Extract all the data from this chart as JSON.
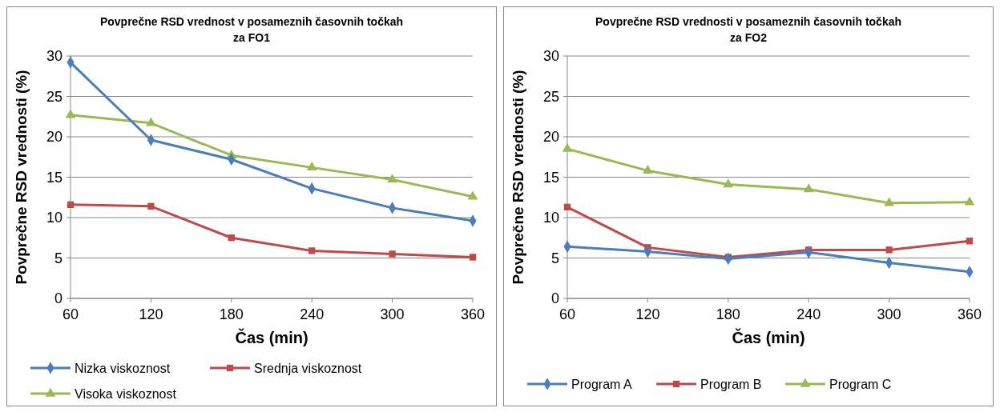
{
  "chart_data": [
    {
      "type": "line",
      "title": "Povprečne RSD vrednost v posameznih časovnih točkah za  FO1",
      "xlabel": "Čas (min)",
      "ylabel": "Povprečne RSD vrednosti (%)",
      "categories": [
        "60",
        "120",
        "180",
        "240",
        "300",
        "360"
      ],
      "ylim": [
        0,
        30
      ],
      "yticks": [
        0,
        5,
        10,
        15,
        20,
        25,
        30
      ],
      "grid": "y",
      "legend": "bottom",
      "series": [
        {
          "name": "Nizka viskoznost",
          "color": "#4a7ebb",
          "marker": "diamond",
          "values": [
            29.2,
            19.6,
            17.2,
            13.6,
            11.2,
            9.6
          ]
        },
        {
          "name": "Srednja viskoznost",
          "color": "#be4b48",
          "marker": "square",
          "values": [
            11.6,
            11.4,
            7.5,
            5.9,
            5.5,
            5.1
          ]
        },
        {
          "name": "Visoka viskoznost",
          "color": "#98b954",
          "marker": "triangle",
          "values": [
            22.7,
            21.7,
            17.7,
            16.2,
            14.7,
            12.6
          ]
        }
      ]
    },
    {
      "type": "line",
      "title": "Povprečne RSD vrednosti v posameznih časovnih točkah za FO2",
      "xlabel": "Čas (min)",
      "ylabel": "Povprečne RSD vrednosti (%)",
      "categories": [
        "60",
        "120",
        "180",
        "240",
        "300",
        "360"
      ],
      "ylim": [
        0,
        30
      ],
      "yticks": [
        0,
        5,
        10,
        15,
        20,
        25,
        30
      ],
      "grid": "y",
      "legend": "bottom",
      "series": [
        {
          "name": "Program A",
          "color": "#4a7ebb",
          "marker": "diamond",
          "values": [
            6.4,
            5.8,
            4.9,
            5.7,
            4.4,
            3.3
          ]
        },
        {
          "name": "Program B",
          "color": "#be4b48",
          "marker": "square",
          "values": [
            11.3,
            6.3,
            5.1,
            6.0,
            6.0,
            7.1
          ]
        },
        {
          "name": "Program C",
          "color": "#98b954",
          "marker": "triangle",
          "values": [
            18.5,
            15.8,
            14.1,
            13.5,
            11.8,
            11.9
          ]
        }
      ]
    }
  ]
}
